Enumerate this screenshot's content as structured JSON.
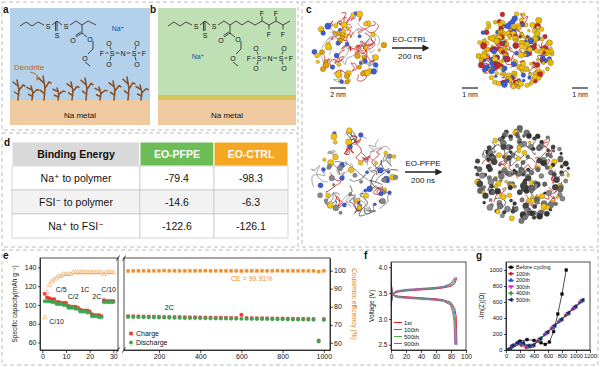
{
  "panels": {
    "labels": [
      "a",
      "b",
      "c",
      "d",
      "e",
      "f",
      "g"
    ]
  },
  "scheme_a": {
    "annotation": "Dendrite",
    "substrate": "Na metal",
    "structure_labels": [
      "S",
      "S",
      "S",
      "O",
      "O",
      "O",
      "Na⁺",
      "N",
      "S",
      "S",
      "O",
      "O",
      "O",
      "O",
      "F",
      "F"
    ]
  },
  "scheme_b": {
    "substrate": "Na metal",
    "structure_labels": [
      "S",
      "S",
      "S",
      "O",
      "O",
      "O",
      "F",
      "F",
      "F",
      "F",
      "Na⁺",
      "N",
      "S",
      "S",
      "O",
      "O",
      "O",
      "O",
      "F",
      "F"
    ]
  },
  "simulation": {
    "rows": [
      {
        "name": "EO-CTRL",
        "time": "200 ns",
        "scale_labels": [
          "2 nm",
          "1 nm",
          "1 nm"
        ]
      },
      {
        "name": "EO-PFPE",
        "time": "200 ns"
      }
    ]
  },
  "table": {
    "header": [
      "Binding Energy",
      "EO-PFPE",
      "EO-CTRL"
    ],
    "rows": [
      [
        "Na⁺ to polymer",
        -79.4,
        -98.3
      ],
      [
        "FSI⁻ to polymer",
        -14.6,
        -6.3
      ],
      [
        "Na⁺ to FSI⁻",
        -122.6,
        -126.1
      ]
    ]
  },
  "chart_data": [
    {
      "type": "scatter",
      "x": [
        1,
        2,
        3,
        4,
        5,
        6,
        7,
        8,
        9,
        10,
        11,
        12,
        13,
        14,
        15,
        16,
        17,
        18,
        19,
        20,
        21,
        22,
        23,
        24,
        25,
        26,
        27,
        28,
        29,
        30
      ],
      "xlim": [
        -1,
        32
      ],
      "xticks": [
        0,
        10,
        20,
        30
      ],
      "ylim": [
        52,
        150
      ],
      "yticks": [
        60,
        80,
        100,
        120,
        140
      ],
      "ylabel": "Specific capacity(mAh g⁻¹)",
      "y2lim": [
        56,
        107
      ],
      "series": [
        {
          "color": "#e8392f",
          "marker": "square",
          "values": [
            112,
            108,
            107,
            106,
            106,
            103,
            103,
            102,
            102,
            102,
            99,
            98,
            98,
            98,
            97,
            95,
            94,
            94,
            94,
            93,
            90,
            89,
            89,
            89,
            88,
            105,
            104,
            104,
            104,
            104
          ]
        },
        {
          "color": "#3aa655",
          "marker": "circle",
          "values": [
            104,
            104,
            104,
            103,
            103,
            101,
            101,
            101,
            100,
            100,
            97,
            97,
            97,
            96,
            96,
            93,
            93,
            93,
            92,
            92,
            88,
            88,
            88,
            87,
            87,
            103,
            103,
            103,
            103,
            103
          ]
        },
        {
          "color": "#f28e2b",
          "marker": "triangle-open",
          "axis": "y2",
          "values": [
            74,
            88,
            92,
            94,
            95,
            96,
            97,
            97,
            98,
            98,
            98,
            98,
            99,
            99,
            99,
            99,
            99,
            99,
            99,
            99,
            99,
            99,
            99,
            99,
            99,
            98,
            99,
            99,
            99,
            99
          ]
        }
      ],
      "annotations": [
        {
          "text": "C/10",
          "x": 6,
          "y": 80
        },
        {
          "text": "C/5",
          "x": 8,
          "y": 114
        },
        {
          "text": "C/2",
          "x": 13,
          "y": 106
        },
        {
          "text": "1C",
          "x": 18,
          "y": 114
        },
        {
          "text": "2C",
          "x": 23,
          "y": 106
        },
        {
          "text": "C/10",
          "x": 28,
          "y": 114
        }
      ]
    },
    {
      "type": "scatter",
      "x": [
        50,
        75,
        100,
        125,
        150,
        175,
        200,
        225,
        250,
        275,
        300,
        325,
        350,
        375,
        400,
        425,
        450,
        475,
        500,
        525,
        550,
        575,
        600,
        625,
        650,
        675,
        700,
        725,
        750,
        775,
        800,
        825,
        850,
        875,
        900,
        925,
        950,
        975,
        1000
      ],
      "xlim": [
        30,
        1030
      ],
      "xticks": [
        200,
        400,
        600,
        800,
        1000
      ],
      "ylim": [
        52,
        150
      ],
      "y2lim": [
        56,
        107
      ],
      "y2ticks": [
        60,
        70,
        80,
        90,
        100
      ],
      "y2label": "Coulombic efficiency (%)",
      "legend": "lower left",
      "series": [
        {
          "name": "Charge",
          "color": "#e8392f",
          "marker": "square",
          "values": [
            88.0,
            87.9,
            87.8,
            87.7,
            87.6,
            87.5,
            87.4,
            87.3,
            87.2,
            87.1,
            87.0,
            86.9,
            86.8,
            86.8,
            86.7,
            86.6,
            86.5,
            86.4,
            86.4,
            86.3,
            86.2,
            86.1,
            89.5,
            86.0,
            85.9,
            85.8,
            85.8,
            85.7,
            85.6,
            85.5,
            85.5,
            85.4,
            85.3,
            85.2,
            85.2,
            85.1,
            85.0,
            62.0,
            84.9
          ]
        },
        {
          "name": "Discharge",
          "color": "#3aa655",
          "marker": "circle",
          "values": [
            87.2,
            87.1,
            87.0,
            86.9,
            86.8,
            86.7,
            86.6,
            86.5,
            86.4,
            86.3,
            86.2,
            86.1,
            86.0,
            86.0,
            85.9,
            85.8,
            85.7,
            85.6,
            85.6,
            85.5,
            85.4,
            85.3,
            85.3,
            85.2,
            85.1,
            85.0,
            85.0,
            84.9,
            84.8,
            84.7,
            84.7,
            84.6,
            84.5,
            84.4,
            84.4,
            84.3,
            84.2,
            61.0,
            84.1
          ]
        },
        {
          "color": "#f28e2b",
          "marker": "square",
          "axis": "y2",
          "values": [
            99.8,
            99.9,
            99.9,
            99.9,
            99.9,
            99.9,
            99.9,
            100.0,
            99.9,
            99.9,
            99.9,
            99.9,
            99.9,
            99.9,
            99.9,
            100.0,
            99.9,
            99.9,
            99.9,
            99.9,
            99.9,
            99.9,
            99.8,
            99.9,
            99.9,
            99.9,
            99.9,
            99.9,
            99.9,
            100.0,
            99.9,
            99.9,
            99.9,
            99.9,
            99.9,
            99.9,
            99.9,
            99.5,
            99.9
          ]
        }
      ],
      "annotations": [
        {
          "text": "2C",
          "x": 250,
          "y": 95
        },
        {
          "text": "CE = 99.91%",
          "x": 650,
          "y": 126,
          "color": "#f28e2b"
        }
      ]
    },
    {
      "type": "line",
      "xlim": [
        0,
        100
      ],
      "xticks": [
        0,
        20,
        40,
        60,
        80,
        100
      ],
      "ylim": [
        2.4,
        4.1
      ],
      "yticks": [
        2.5,
        {
          "value": 3,
          "label": "3.0"
        },
        3.5,
        {
          "value": 4,
          "label": "4.0"
        }
      ],
      "ylabel": "Voltage (V)",
      "legend": "lower left",
      "series": [
        {
          "name": "1st",
          "color": "#e41a1c",
          "x": [
            0,
            2,
            5,
            10,
            20,
            30,
            40,
            50,
            60,
            70,
            80,
            85,
            88,
            null,
            0,
            2,
            5,
            10,
            20,
            30,
            40,
            50,
            60,
            70,
            80,
            85,
            87,
            88
          ],
          "values": [
            3.25,
            3.45,
            3.5,
            3.52,
            3.54,
            3.55,
            3.56,
            3.57,
            3.58,
            3.6,
            3.63,
            3.68,
            3.8,
            null,
            3.7,
            3.5,
            3.46,
            3.44,
            3.43,
            3.42,
            3.41,
            3.4,
            3.39,
            3.37,
            3.32,
            3.2,
            3.05,
            2.5
          ]
        },
        {
          "name": "100th",
          "color": "#377eb8",
          "x": [
            0,
            2,
            5,
            10,
            20,
            30,
            40,
            50,
            60,
            70,
            80,
            84,
            87,
            null,
            0,
            2,
            5,
            10,
            20,
            30,
            40,
            50,
            60,
            70,
            80,
            84,
            86,
            87
          ],
          "values": [
            3.26,
            3.46,
            3.51,
            3.53,
            3.55,
            3.56,
            3.57,
            3.58,
            3.59,
            3.61,
            3.65,
            3.7,
            3.8,
            null,
            3.7,
            3.49,
            3.45,
            3.43,
            3.42,
            3.41,
            3.4,
            3.39,
            3.38,
            3.36,
            3.3,
            3.18,
            3.0,
            2.5
          ]
        },
        {
          "name": "500th",
          "color": "#4daf4a",
          "x": [
            0,
            2,
            5,
            10,
            20,
            30,
            40,
            50,
            60,
            70,
            80,
            83,
            86,
            null,
            0,
            2,
            5,
            10,
            20,
            30,
            40,
            50,
            60,
            70,
            80,
            83,
            85,
            86
          ],
          "values": [
            3.27,
            3.47,
            3.52,
            3.54,
            3.56,
            3.57,
            3.58,
            3.59,
            3.6,
            3.62,
            3.67,
            3.72,
            3.8,
            null,
            3.7,
            3.48,
            3.44,
            3.42,
            3.41,
            3.4,
            3.39,
            3.38,
            3.37,
            3.35,
            3.28,
            3.16,
            2.98,
            2.5
          ]
        },
        {
          "name": "900th",
          "color": "#984ea3",
          "x": [
            0,
            2,
            5,
            10,
            20,
            30,
            40,
            50,
            60,
            70,
            79,
            82,
            85,
            null,
            0,
            2,
            5,
            10,
            20,
            30,
            40,
            50,
            60,
            70,
            79,
            82,
            84,
            85
          ],
          "values": [
            3.28,
            3.48,
            3.53,
            3.55,
            3.57,
            3.58,
            3.59,
            3.6,
            3.61,
            3.63,
            3.68,
            3.73,
            3.8,
            null,
            3.7,
            3.47,
            3.43,
            3.41,
            3.4,
            3.39,
            3.38,
            3.37,
            3.36,
            3.34,
            3.27,
            3.15,
            2.96,
            2.5
          ]
        }
      ]
    },
    {
      "type": "line",
      "xlim": [
        0,
        1200
      ],
      "xticks": [
        0,
        200,
        400,
        600,
        800,
        1000,
        1200
      ],
      "ylim": [
        0,
        1100
      ],
      "yticks": [
        0,
        200,
        400,
        600,
        800,
        1000
      ],
      "ylabel": "-Im(Z)(Ω)",
      "legend": "upper left",
      "series": [
        {
          "name": "Before cycling",
          "color": "#000000",
          "marker": "square",
          "x": [
            60,
            120,
            200,
            300,
            400,
            500,
            560,
            620,
            680,
            740,
            800,
            860
          ],
          "values": [
            5,
            60,
            110,
            130,
            120,
            90,
            70,
            100,
            230,
            450,
            700,
            1000
          ]
        },
        {
          "name": "100th",
          "color": "#e41a1c",
          "marker": "circle",
          "x": [
            40,
            80,
            150,
            220,
            290,
            350,
            450,
            550,
            650,
            750,
            850,
            950,
            1050
          ],
          "values": [
            5,
            40,
            70,
            60,
            30,
            40,
            110,
            190,
            270,
            350,
            430,
            510,
            590
          ]
        },
        {
          "name": "200th",
          "color": "#1f4fd6",
          "marker": "triangle",
          "x": [
            40,
            85,
            155,
            230,
            300,
            370,
            470,
            570,
            670,
            770,
            870,
            970,
            1070
          ],
          "values": [
            5,
            45,
            80,
            70,
            40,
            50,
            125,
            205,
            285,
            365,
            445,
            525,
            605
          ]
        },
        {
          "name": "300th",
          "color": "#d62fd6",
          "marker": "triangle-down",
          "x": [
            40,
            90,
            160,
            240,
            310,
            380,
            480,
            580,
            680,
            780,
            880,
            980,
            1080
          ],
          "values": [
            5,
            48,
            85,
            78,
            45,
            55,
            135,
            215,
            295,
            375,
            455,
            535,
            615
          ]
        },
        {
          "name": "400th",
          "color": "#2ca02c",
          "marker": "diamond",
          "x": [
            40,
            95,
            165,
            245,
            320,
            390,
            490,
            590,
            690,
            790,
            890,
            990,
            1090
          ],
          "values": [
            5,
            50,
            88,
            82,
            48,
            58,
            140,
            220,
            300,
            380,
            460,
            540,
            620
          ]
        },
        {
          "name": "500th",
          "color": "#1a237e",
          "marker": "triangle-left",
          "x": [
            40,
            95,
            170,
            250,
            330,
            400,
            500,
            600,
            700,
            800,
            900,
            1000,
            1100
          ],
          "values": [
            5,
            52,
            92,
            86,
            52,
            62,
            145,
            225,
            305,
            385,
            465,
            545,
            625
          ]
        }
      ]
    }
  ]
}
